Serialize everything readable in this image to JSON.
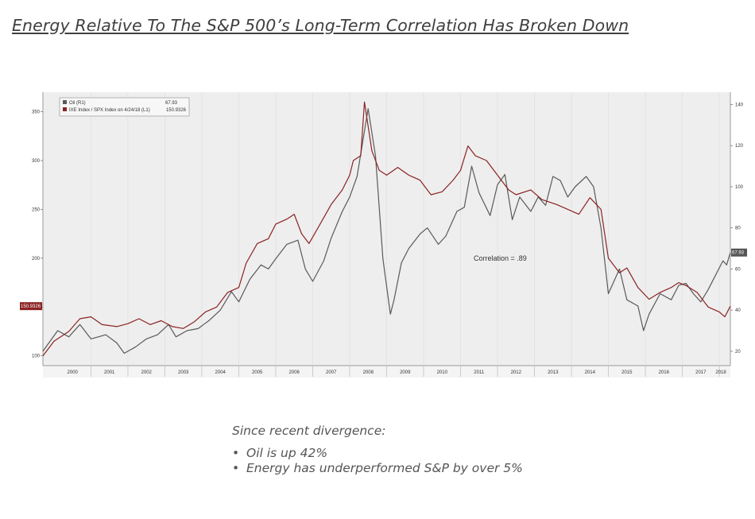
{
  "slide": {
    "title": "Energy Relative To The S&P 500’s Long-Term Correlation Has Broken Down"
  },
  "notes": {
    "heading": "Since recent divergence:",
    "bullets": [
      "Oil is up 42%",
      "Energy has underperformed S&P by over 5%"
    ]
  },
  "chart_data": {
    "type": "line",
    "annotation": "Correlation = .89",
    "x_tick_labels": [
      "2000",
      "2001",
      "2002",
      "2003",
      "2004",
      "2005",
      "2006",
      "2007",
      "2008",
      "2009",
      "2010",
      "2011",
      "2012",
      "2013",
      "2014",
      "2015",
      "2016",
      "2017",
      "2018"
    ],
    "left_axis": {
      "ticks": [
        100,
        150,
        200,
        250,
        300,
        350
      ],
      "range": [
        90,
        370
      ]
    },
    "right_axis": {
      "ticks": [
        20,
        40,
        60,
        80,
        100,
        120,
        140
      ],
      "range": [
        13,
        146
      ]
    },
    "x_range": [
      1999.7,
      2018.3
    ],
    "series": [
      {
        "name": "Oil (R1)",
        "legend_value": "67.93",
        "end_label": "67.93",
        "axis": "right",
        "color": "#5a5a5a",
        "points": [
          [
            1999.7,
            20
          ],
          [
            2000.1,
            30
          ],
          [
            2000.4,
            27
          ],
          [
            2000.7,
            33
          ],
          [
            2001.0,
            26
          ],
          [
            2001.4,
            28
          ],
          [
            2001.7,
            24
          ],
          [
            2001.9,
            19
          ],
          [
            2002.2,
            22
          ],
          [
            2002.5,
            26
          ],
          [
            2002.8,
            28
          ],
          [
            2003.1,
            33
          ],
          [
            2003.3,
            27
          ],
          [
            2003.6,
            30
          ],
          [
            2003.9,
            31
          ],
          [
            2004.2,
            35
          ],
          [
            2004.5,
            40
          ],
          [
            2004.8,
            49
          ],
          [
            2005.0,
            44
          ],
          [
            2005.3,
            55
          ],
          [
            2005.6,
            62
          ],
          [
            2005.8,
            60
          ],
          [
            2006.0,
            65
          ],
          [
            2006.3,
            72
          ],
          [
            2006.6,
            74
          ],
          [
            2006.8,
            60
          ],
          [
            2007.0,
            54
          ],
          [
            2007.3,
            64
          ],
          [
            2007.5,
            75
          ],
          [
            2007.8,
            88
          ],
          [
            2008.0,
            95
          ],
          [
            2008.2,
            105
          ],
          [
            2008.5,
            138
          ],
          [
            2008.7,
            115
          ],
          [
            2008.9,
            65
          ],
          [
            2009.1,
            38
          ],
          [
            2009.2,
            45
          ],
          [
            2009.4,
            63
          ],
          [
            2009.6,
            70
          ],
          [
            2009.9,
            77
          ],
          [
            2010.1,
            80
          ],
          [
            2010.4,
            72
          ],
          [
            2010.6,
            76
          ],
          [
            2010.9,
            88
          ],
          [
            2011.1,
            90
          ],
          [
            2011.3,
            110
          ],
          [
            2011.5,
            97
          ],
          [
            2011.8,
            86
          ],
          [
            2012.0,
            101
          ],
          [
            2012.2,
            106
          ],
          [
            2012.4,
            84
          ],
          [
            2012.6,
            95
          ],
          [
            2012.9,
            88
          ],
          [
            2013.1,
            95
          ],
          [
            2013.3,
            91
          ],
          [
            2013.5,
            105
          ],
          [
            2013.7,
            103
          ],
          [
            2013.9,
            95
          ],
          [
            2014.1,
            100
          ],
          [
            2014.4,
            105
          ],
          [
            2014.6,
            100
          ],
          [
            2014.8,
            80
          ],
          [
            2015.0,
            48
          ],
          [
            2015.3,
            60
          ],
          [
            2015.5,
            45
          ],
          [
            2015.8,
            42
          ],
          [
            2015.95,
            30
          ],
          [
            2016.1,
            38
          ],
          [
            2016.4,
            48
          ],
          [
            2016.7,
            45
          ],
          [
            2016.9,
            52
          ],
          [
            2017.1,
            53
          ],
          [
            2017.3,
            48
          ],
          [
            2017.5,
            44
          ],
          [
            2017.7,
            50
          ],
          [
            2017.9,
            57
          ],
          [
            2018.1,
            64
          ],
          [
            2018.2,
            62
          ],
          [
            2018.3,
            68
          ]
        ]
      },
      {
        "name": "IXE Index / SPX Index on 4/24/18 (L1)",
        "legend_value": "150.9326",
        "end_label": "150.9326",
        "axis": "left",
        "color": "#8b2323",
        "points": [
          [
            1999.7,
            100
          ],
          [
            2000.0,
            115
          ],
          [
            2000.4,
            125
          ],
          [
            2000.7,
            138
          ],
          [
            2001.0,
            140
          ],
          [
            2001.3,
            132
          ],
          [
            2001.7,
            130
          ],
          [
            2002.0,
            133
          ],
          [
            2002.3,
            138
          ],
          [
            2002.6,
            132
          ],
          [
            2002.9,
            136
          ],
          [
            2003.2,
            130
          ],
          [
            2003.5,
            128
          ],
          [
            2003.8,
            135
          ],
          [
            2004.1,
            145
          ],
          [
            2004.4,
            150
          ],
          [
            2004.7,
            165
          ],
          [
            2005.0,
            170
          ],
          [
            2005.2,
            195
          ],
          [
            2005.5,
            215
          ],
          [
            2005.8,
            220
          ],
          [
            2006.0,
            235
          ],
          [
            2006.3,
            240
          ],
          [
            2006.5,
            245
          ],
          [
            2006.7,
            225
          ],
          [
            2006.9,
            215
          ],
          [
            2007.2,
            235
          ],
          [
            2007.5,
            255
          ],
          [
            2007.8,
            270
          ],
          [
            2008.0,
            285
          ],
          [
            2008.1,
            300
          ],
          [
            2008.3,
            305
          ],
          [
            2008.4,
            360
          ],
          [
            2008.6,
            310
          ],
          [
            2008.8,
            290
          ],
          [
            2009.0,
            285
          ],
          [
            2009.3,
            293
          ],
          [
            2009.6,
            285
          ],
          [
            2009.9,
            280
          ],
          [
            2010.2,
            265
          ],
          [
            2010.5,
            268
          ],
          [
            2010.8,
            280
          ],
          [
            2011.0,
            290
          ],
          [
            2011.2,
            315
          ],
          [
            2011.4,
            305
          ],
          [
            2011.7,
            300
          ],
          [
            2012.0,
            285
          ],
          [
            2012.3,
            270
          ],
          [
            2012.5,
            265
          ],
          [
            2012.9,
            270
          ],
          [
            2013.2,
            260
          ],
          [
            2013.6,
            255
          ],
          [
            2013.9,
            250
          ],
          [
            2014.2,
            245
          ],
          [
            2014.5,
            262
          ],
          [
            2014.8,
            250
          ],
          [
            2015.0,
            200
          ],
          [
            2015.3,
            185
          ],
          [
            2015.5,
            190
          ],
          [
            2015.8,
            170
          ],
          [
            2016.1,
            158
          ],
          [
            2016.4,
            165
          ],
          [
            2016.7,
            170
          ],
          [
            2016.9,
            175
          ],
          [
            2017.1,
            172
          ],
          [
            2017.4,
            165
          ],
          [
            2017.7,
            150
          ],
          [
            2018.0,
            145
          ],
          [
            2018.15,
            140
          ],
          [
            2018.3,
            150.9
          ]
        ]
      }
    ]
  }
}
